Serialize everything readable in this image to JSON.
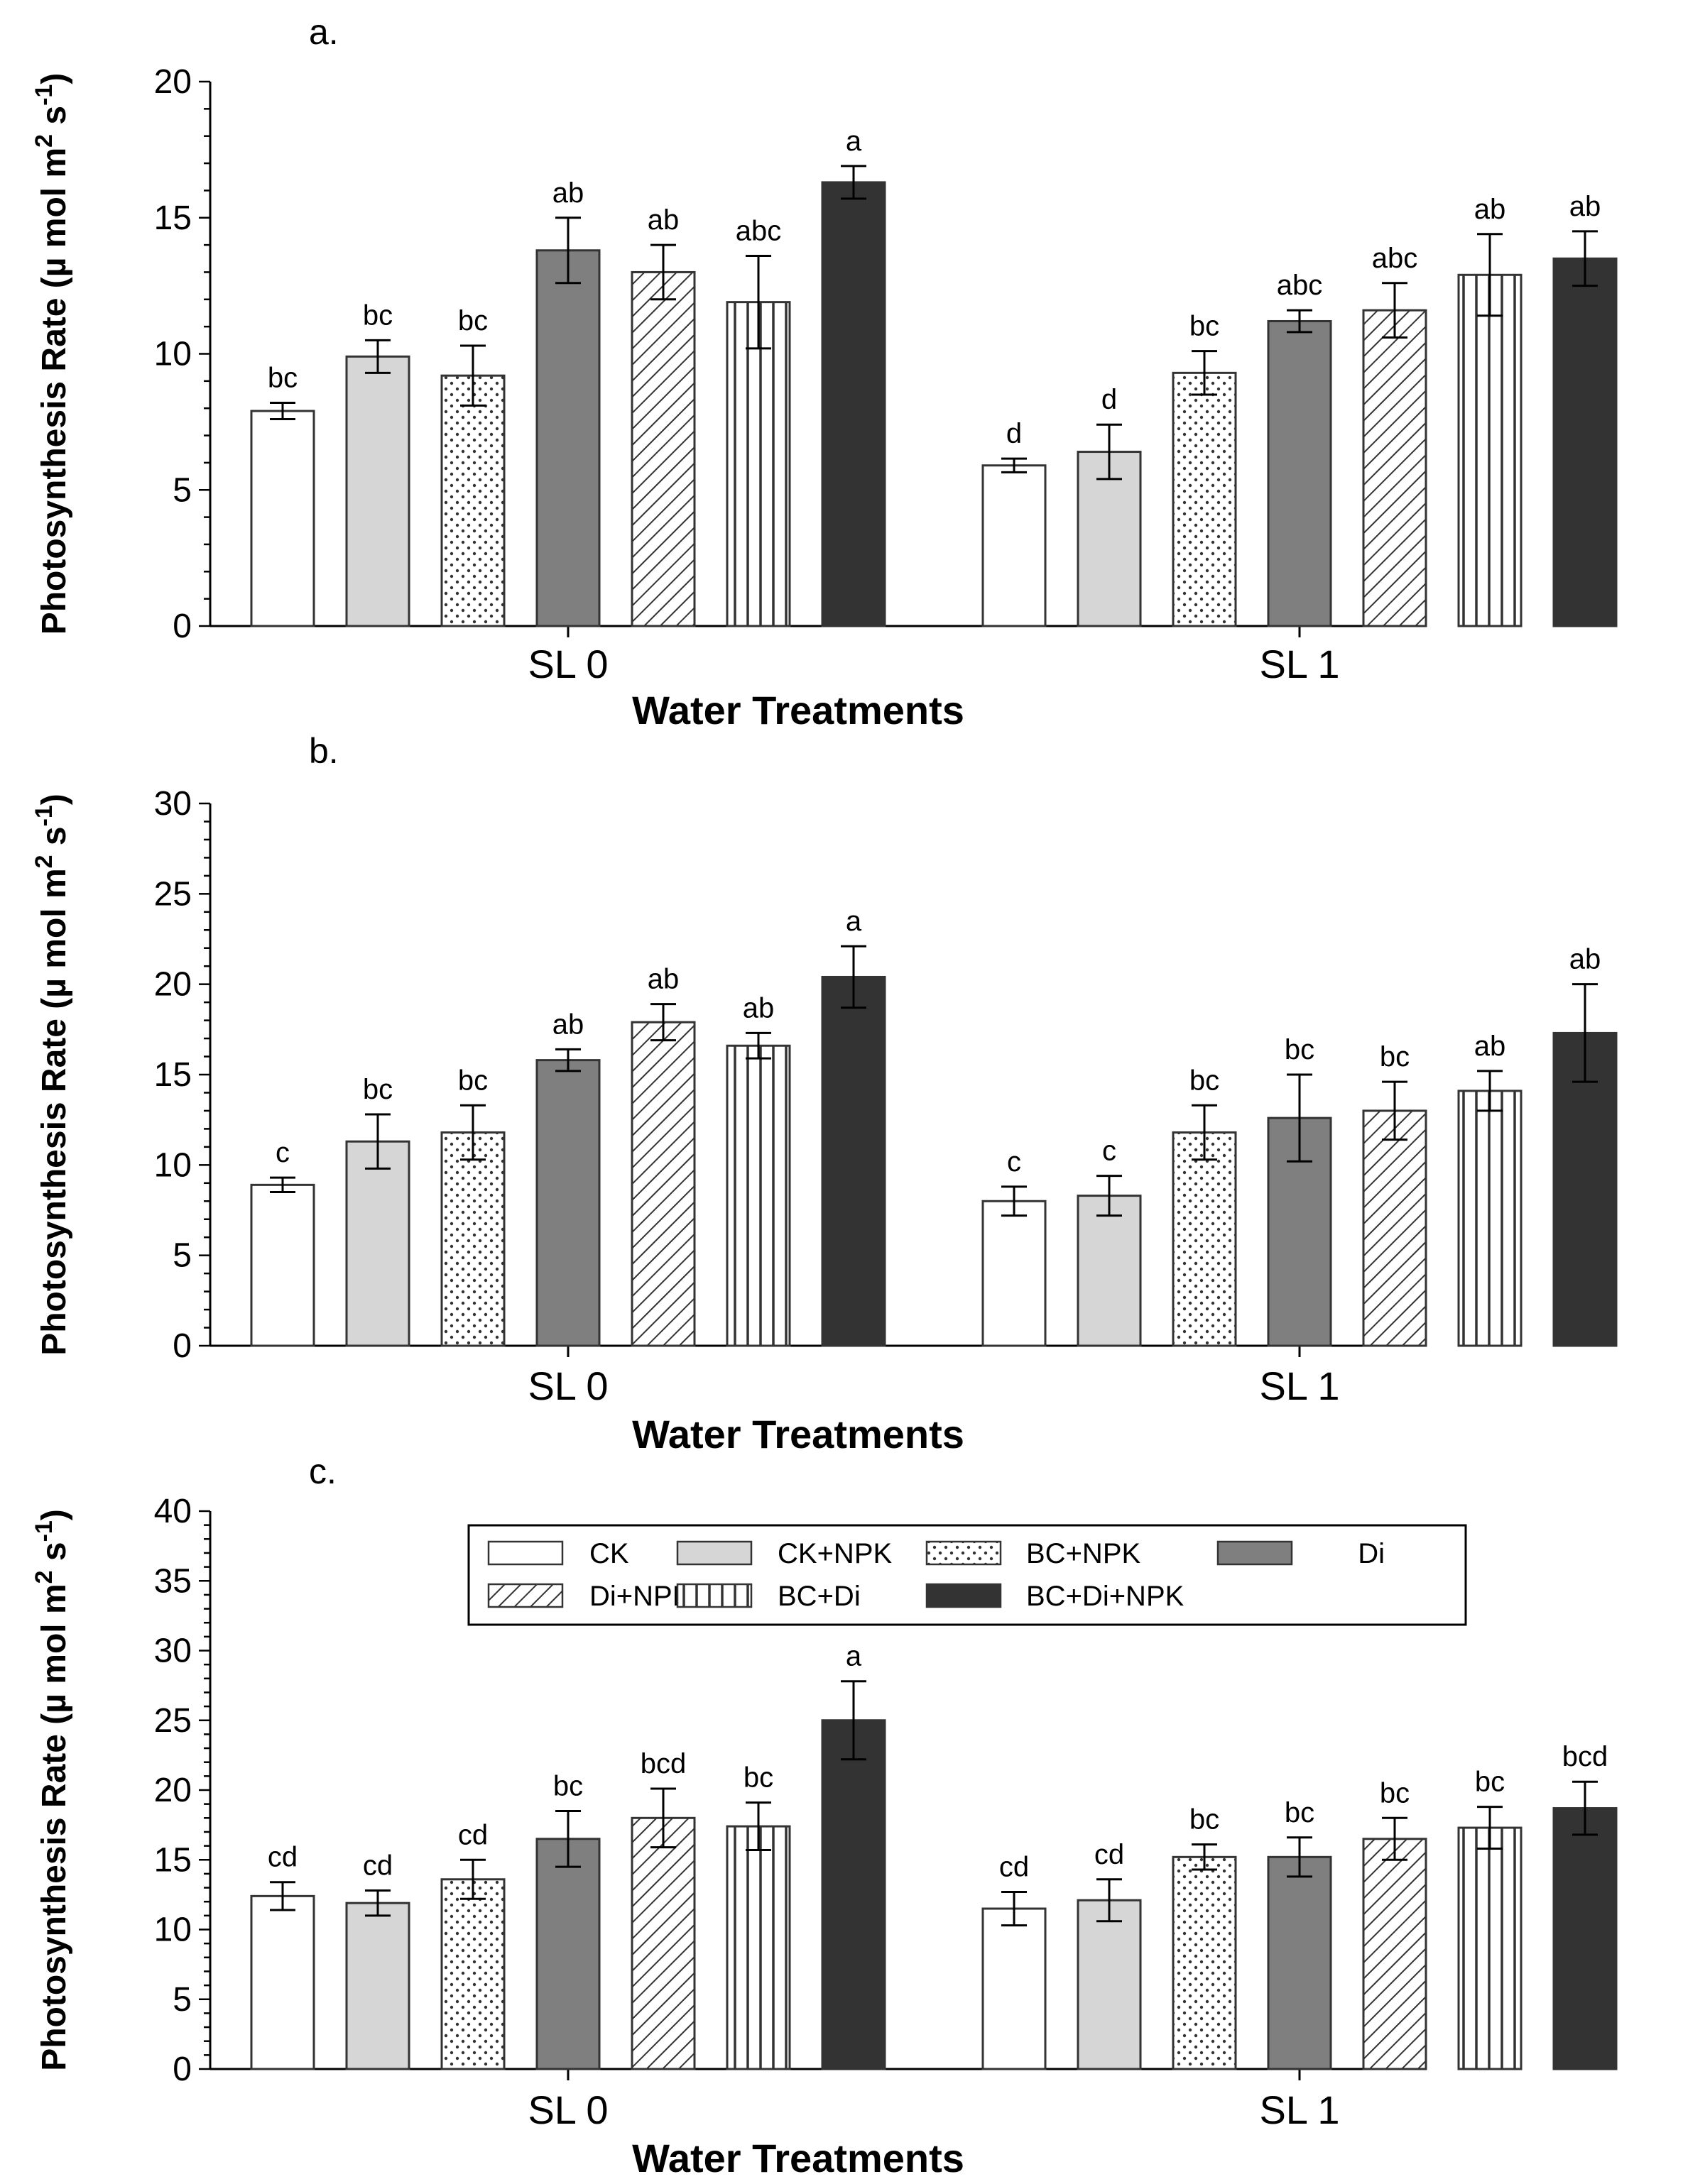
{
  "legend_entries": [
    {
      "label": "CK",
      "fill": "#ffffff",
      "pattern": "none"
    },
    {
      "label": "CK+NPK",
      "fill": "#d6d6d6",
      "pattern": "none"
    },
    {
      "label": "BC+NPK",
      "fill": "#ffffff",
      "pattern": "dots"
    },
    {
      "label": "Di",
      "fill": "#7f7f7f",
      "pattern": "none"
    },
    {
      "label": "Di+NPK",
      "fill": "#ffffff",
      "pattern": "diagonal"
    },
    {
      "label": "BC+Di",
      "fill": "#ffffff",
      "pattern": "vertical"
    },
    {
      "label": "BC+Di+NPK",
      "fill": "#333333",
      "pattern": "none"
    }
  ],
  "chart_data": [
    {
      "type": "bar",
      "panel": "a.",
      "title": "a.",
      "xlabel": "Water Treatments",
      "ylabel": "Photosynthesis Rate (µ mol m2 s-1)",
      "ylabel_parts": {
        "main": "Photosynthesis Rate (µ mol m",
        "sup1": "2",
        "mid": " s",
        "sup2": "-1",
        "end": ")"
      },
      "categories": [
        "SL 0",
        "SL 1"
      ],
      "ylim": [
        0,
        20
      ],
      "yticks": [
        0,
        5,
        10,
        15,
        20
      ],
      "yticklabels": [
        "0",
        "5",
        "10",
        "15",
        "20"
      ],
      "series": [
        {
          "name": "CK",
          "values": [
            7.9,
            5.9
          ],
          "errors": [
            0.3,
            0.25
          ],
          "letters": [
            "bc",
            "d"
          ]
        },
        {
          "name": "CK+NPK",
          "values": [
            9.9,
            6.4
          ],
          "errors": [
            0.6,
            1.0
          ],
          "letters": [
            "bc",
            "d"
          ]
        },
        {
          "name": "BC+NPK",
          "values": [
            9.2,
            9.3
          ],
          "errors": [
            1.1,
            0.8
          ],
          "letters": [
            "bc",
            "bc"
          ]
        },
        {
          "name": "Di",
          "values": [
            13.8,
            11.2
          ],
          "errors": [
            1.2,
            0.4
          ],
          "letters": [
            "ab",
            "abc"
          ]
        },
        {
          "name": "Di+NPK",
          "values": [
            13.0,
            11.6
          ],
          "errors": [
            1.0,
            1.0
          ],
          "letters": [
            "ab",
            "abc"
          ]
        },
        {
          "name": "BC+Di",
          "values": [
            11.9,
            12.9
          ],
          "errors": [
            1.7,
            1.5
          ],
          "letters": [
            "abc",
            "ab"
          ]
        },
        {
          "name": "BC+Di+NPK",
          "values": [
            16.3,
            13.5
          ],
          "errors": [
            0.6,
            1.0
          ],
          "letters": [
            "a",
            "ab"
          ]
        }
      ]
    },
    {
      "type": "bar",
      "panel": "b.",
      "title": "b.",
      "xlabel": "Water Treatments",
      "ylabel": "Photosynthesis Rate (µ mol m2 s-1)",
      "ylabel_parts": {
        "main": "Photosynthesis Rate (µ mol m",
        "sup1": "2",
        "mid": " s",
        "sup2": "-1",
        "end": ")"
      },
      "categories": [
        "SL 0",
        "SL 1"
      ],
      "ylim": [
        0,
        30
      ],
      "yticks": [
        0,
        5,
        10,
        15,
        20,
        25,
        30
      ],
      "yticklabels": [
        "0",
        "5",
        "10",
        "15",
        "20",
        "25",
        "30"
      ],
      "series": [
        {
          "name": "CK",
          "values": [
            8.9,
            8.0
          ],
          "errors": [
            0.4,
            0.8
          ],
          "letters": [
            "c",
            "c"
          ]
        },
        {
          "name": "CK+NPK",
          "values": [
            11.3,
            8.3
          ],
          "errors": [
            1.5,
            1.1
          ],
          "letters": [
            "bc",
            "c"
          ]
        },
        {
          "name": "BC+NPK",
          "values": [
            11.8,
            11.8
          ],
          "errors": [
            1.5,
            1.5
          ],
          "letters": [
            "bc",
            "bc"
          ]
        },
        {
          "name": "Di",
          "values": [
            15.8,
            12.6
          ],
          "errors": [
            0.6,
            2.4
          ],
          "letters": [
            "ab",
            "bc"
          ]
        },
        {
          "name": "Di+NPK",
          "values": [
            17.9,
            13.0
          ],
          "errors": [
            1.0,
            1.6
          ],
          "letters": [
            "ab",
            "bc"
          ]
        },
        {
          "name": "BC+Di",
          "values": [
            16.6,
            14.1
          ],
          "errors": [
            0.7,
            1.1
          ],
          "letters": [
            "ab",
            "ab"
          ]
        },
        {
          "name": "BC+Di+NPK",
          "values": [
            20.4,
            17.3
          ],
          "errors": [
            1.7,
            2.7
          ],
          "letters": [
            "a",
            "ab"
          ]
        }
      ]
    },
    {
      "type": "bar",
      "panel": "c.",
      "title": "c.",
      "xlabel": "Water Treatments",
      "ylabel": "Photosynthesis Rate (µ mol m2 s-1)",
      "ylabel_parts": {
        "main": "Photosynthesis Rate (µ mol m",
        "sup1": "2",
        "mid": " s",
        "sup2": "-1",
        "end": ")"
      },
      "categories": [
        "SL 0",
        "SL 1"
      ],
      "ylim": [
        0,
        40
      ],
      "yticks": [
        0,
        5,
        10,
        15,
        20,
        25,
        30,
        35,
        40
      ],
      "yticklabels": [
        "0",
        "5",
        "10",
        "15",
        "20",
        "25",
        "30",
        "35",
        "40"
      ],
      "legend": "top-center",
      "series": [
        {
          "name": "CK",
          "values": [
            12.4,
            11.5
          ],
          "errors": [
            1.0,
            1.2
          ],
          "letters": [
            "cd",
            "cd"
          ]
        },
        {
          "name": "CK+NPK",
          "values": [
            11.9,
            12.1
          ],
          "errors": [
            0.9,
            1.5
          ],
          "letters": [
            "cd",
            "cd"
          ]
        },
        {
          "name": "BC+NPK",
          "values": [
            13.6,
            15.2
          ],
          "errors": [
            1.4,
            0.9
          ],
          "letters": [
            "cd",
            "bc"
          ]
        },
        {
          "name": "Di",
          "values": [
            16.5,
            15.2
          ],
          "errors": [
            2.0,
            1.4
          ],
          "letters": [
            "bc",
            "bc"
          ]
        },
        {
          "name": "Di+NPK",
          "values": [
            18.0,
            16.5
          ],
          "errors": [
            2.1,
            1.5
          ],
          "letters": [
            "bcd",
            "bc"
          ]
        },
        {
          "name": "BC+Di",
          "values": [
            17.4,
            17.3
          ],
          "errors": [
            1.7,
            1.5
          ],
          "letters": [
            "bc",
            "bc"
          ]
        },
        {
          "name": "BC+Di+NPK",
          "values": [
            25.0,
            18.7
          ],
          "errors": [
            2.8,
            1.9
          ],
          "letters": [
            "a",
            "bcd"
          ]
        }
      ]
    }
  ]
}
